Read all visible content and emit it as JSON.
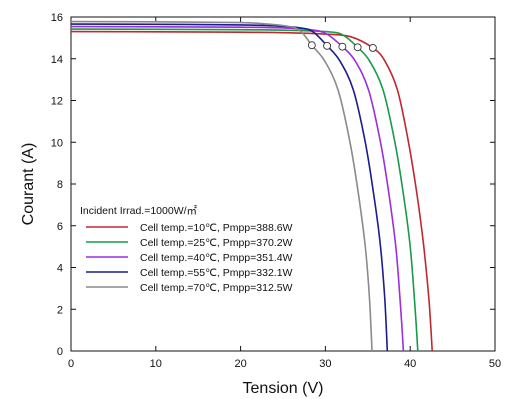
{
  "chart_data": {
    "type": "line",
    "title": "",
    "xlabel": "Tension (V)",
    "ylabel": "Courant (A)",
    "xlim": [
      0,
      50
    ],
    "ylim": [
      0,
      16
    ],
    "xticks": [
      0,
      10,
      20,
      30,
      40,
      50
    ],
    "yticks": [
      0,
      2,
      4,
      6,
      8,
      10,
      12,
      14,
      16
    ],
    "grid": false,
    "legend_title": "Incident Irrad.=1000W/㎡",
    "legend_position": "left-center",
    "series": [
      {
        "name": "Cell temp.=10℃,  Pmpp=388.6W",
        "color": "#c0282e",
        "x": [
          0,
          10,
          20,
          25,
          30,
          33,
          35.6,
          37,
          38.5,
          39.8,
          40.8,
          41.6,
          42.2,
          42.6
        ],
        "y": [
          15.3,
          15.29,
          15.27,
          15.25,
          15.18,
          15.05,
          14.52,
          13.9,
          12.5,
          10.0,
          7.5,
          5.0,
          2.5,
          0
        ]
      },
      {
        "name": "Cell temp.=25℃,  Pmpp=370.2W",
        "color": "#1a9a4a",
        "x": [
          0,
          10,
          20,
          25,
          30,
          32,
          33.8,
          35.2,
          36.8,
          38.2,
          39.2,
          40.0,
          40.5,
          40.9
        ],
        "y": [
          15.42,
          15.41,
          15.39,
          15.37,
          15.3,
          15.15,
          14.55,
          13.9,
          12.5,
          10.0,
          7.5,
          5.0,
          2.5,
          0
        ]
      },
      {
        "name": "Cell temp.=40℃,  Pmpp=351.4W",
        "color": "#9b2ee0",
        "x": [
          0,
          10,
          20,
          25,
          28,
          30,
          32.0,
          33.5,
          35.1,
          36.5,
          37.5,
          38.3,
          38.8,
          39.2
        ],
        "y": [
          15.54,
          15.53,
          15.51,
          15.48,
          15.4,
          15.22,
          14.58,
          13.9,
          12.5,
          10.0,
          7.5,
          5.0,
          2.5,
          0
        ]
      },
      {
        "name": "Cell temp.=55℃,  Pmpp=332.1W",
        "color": "#1c1c8c",
        "x": [
          0,
          10,
          20,
          24,
          27,
          28.5,
          30.2,
          31.7,
          33.3,
          34.7,
          35.7,
          36.5,
          37.0,
          37.3
        ],
        "y": [
          15.66,
          15.65,
          15.62,
          15.58,
          15.48,
          15.3,
          14.62,
          13.9,
          12.5,
          10.0,
          7.5,
          5.0,
          2.5,
          0
        ]
      },
      {
        "name": "Cell temp.=70℃,  Pmpp=312.5W",
        "color": "#8a8a8a",
        "x": [
          0,
          10,
          20,
          23,
          25.5,
          27,
          28.4,
          29.9,
          31.5,
          32.9,
          33.9,
          34.7,
          35.2,
          35.5
        ],
        "y": [
          15.78,
          15.77,
          15.73,
          15.67,
          15.56,
          15.35,
          14.65,
          13.9,
          12.5,
          10.0,
          7.5,
          5.0,
          2.5,
          0
        ]
      }
    ],
    "mpp_markers": [
      {
        "x": 35.6,
        "y": 14.52
      },
      {
        "x": 33.8,
        "y": 14.55
      },
      {
        "x": 32.0,
        "y": 14.58
      },
      {
        "x": 30.2,
        "y": 14.62
      },
      {
        "x": 28.4,
        "y": 14.65
      }
    ]
  }
}
